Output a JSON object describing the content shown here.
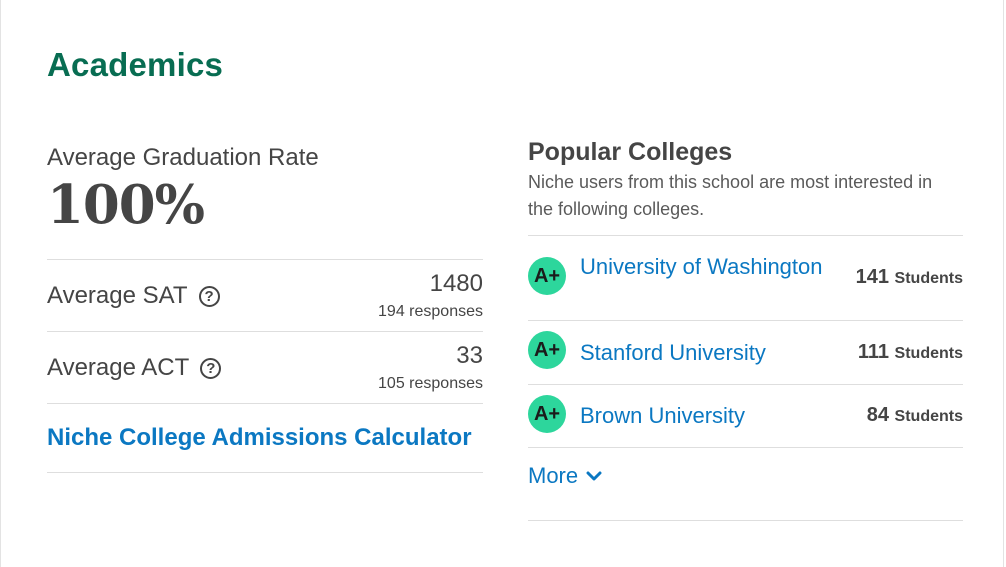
{
  "section": {
    "title": "Academics"
  },
  "graduation": {
    "label": "Average Graduation Rate",
    "value": "100%"
  },
  "sat": {
    "label": "Average SAT",
    "help_icon": "?",
    "value": "1480",
    "responses": "194 responses"
  },
  "act": {
    "label": "Average ACT",
    "help_icon": "?",
    "value": "33",
    "responses": "105 responses"
  },
  "calculator": {
    "label": "Niche College Admissions Calculator"
  },
  "popular": {
    "title": "Popular Colleges",
    "description": "Niche users from this school are most interested in the following colleges.",
    "colleges": [
      {
        "grade": "A+",
        "name": "University of Washington",
        "count": "141",
        "unit": "Students"
      },
      {
        "grade": "A+",
        "name": "Stanford University",
        "count": "111",
        "unit": "Students"
      },
      {
        "grade": "A+",
        "name": "Brown University",
        "count": "84",
        "unit": "Students"
      }
    ],
    "more_label": "More"
  },
  "colors": {
    "heading_green": "#086d52",
    "link_blue": "#0b78c2",
    "grade_badge": "#2dd69c"
  }
}
